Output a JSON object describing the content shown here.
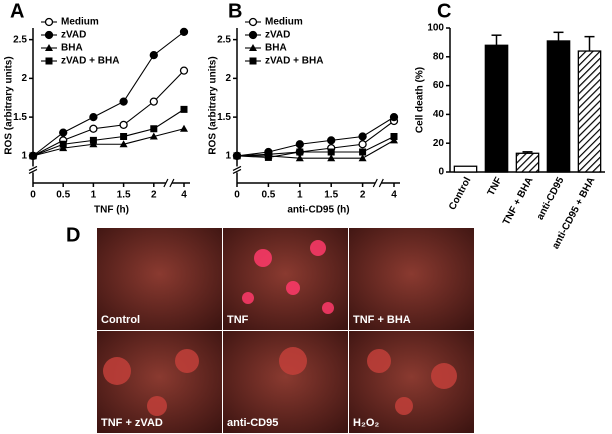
{
  "panel_labels": [
    "A",
    "B",
    "C",
    "D"
  ],
  "chart_data": [
    {
      "type": "line",
      "x_label": "TNF (h)",
      "y_label": "ROS (arbitrary units)",
      "categories": [
        "0",
        "0.5",
        "1",
        "1.5",
        "2",
        "4"
      ],
      "ylim": [
        0.65,
        2.65
      ],
      "yticks": [
        1,
        1.5,
        2,
        2.5
      ],
      "legend": "upper left",
      "series": [
        {
          "name": "Medium",
          "color": "#000000",
          "marker": "open-circle",
          "values": [
            1,
            1.2,
            1.35,
            1.4,
            1.7,
            2.1
          ]
        },
        {
          "name": "zVAD",
          "color": "#000000",
          "marker": "circle",
          "values": [
            1,
            1.3,
            1.5,
            1.7,
            2.3,
            2.6
          ]
        },
        {
          "name": "BHA",
          "color": "#000000",
          "marker": "triangle",
          "values": [
            1,
            1.1,
            1.15,
            1.15,
            1.25,
            1.35
          ]
        },
        {
          "name": "zVAD + BHA",
          "color": "#000000",
          "marker": "square",
          "values": [
            1,
            1.15,
            1.2,
            1.25,
            1.35,
            1.6
          ]
        }
      ]
    },
    {
      "type": "line",
      "x_label": "anti-CD95 (h)",
      "y_label": "ROS (arbitrary units)",
      "categories": [
        "0",
        "0.5",
        "1",
        "1.5",
        "2",
        "4"
      ],
      "ylim": [
        0.65,
        2.65
      ],
      "yticks": [
        1,
        1.5,
        2,
        2.5
      ],
      "legend": "upper left",
      "series": [
        {
          "name": "Medium",
          "color": "#000000",
          "marker": "open-circle",
          "values": [
            1,
            1.02,
            1.05,
            1.1,
            1.15,
            1.45
          ]
        },
        {
          "name": "zVAD",
          "color": "#000000",
          "marker": "circle",
          "values": [
            1,
            1.05,
            1.15,
            1.2,
            1.25,
            1.5
          ]
        },
        {
          "name": "BHA",
          "color": "#000000",
          "marker": "triangle",
          "values": [
            1,
            1,
            0.97,
            0.97,
            0.97,
            1.2
          ]
        },
        {
          "name": "zVAD + BHA",
          "color": "#000000",
          "marker": "square",
          "values": [
            1,
            0.98,
            1.05,
            1.05,
            1.05,
            1.25
          ]
        }
      ]
    },
    {
      "type": "bar",
      "y_label": "Cell death (%)",
      "categories": [
        "Control",
        "TNF",
        "TNF + BHA",
        "anti-CD95",
        "anti-CD95 + BHA"
      ],
      "values": [
        4,
        88,
        13,
        91,
        84
      ],
      "errors": [
        0,
        7,
        1,
        6,
        10
      ],
      "fills": [
        "#ffffff",
        "#000000",
        "hatch",
        "#000000",
        "hatch"
      ],
      "ylim": [
        0,
        100
      ],
      "yticks": [
        0,
        20,
        40,
        60,
        80,
        100
      ]
    }
  ],
  "micrographs": [
    {
      "label": "Control"
    },
    {
      "label": "TNF"
    },
    {
      "label": "TNF + BHA"
    },
    {
      "label": "TNF + zVAD"
    },
    {
      "label": "anti-CD95"
    },
    {
      "label": "H₂O₂"
    }
  ]
}
